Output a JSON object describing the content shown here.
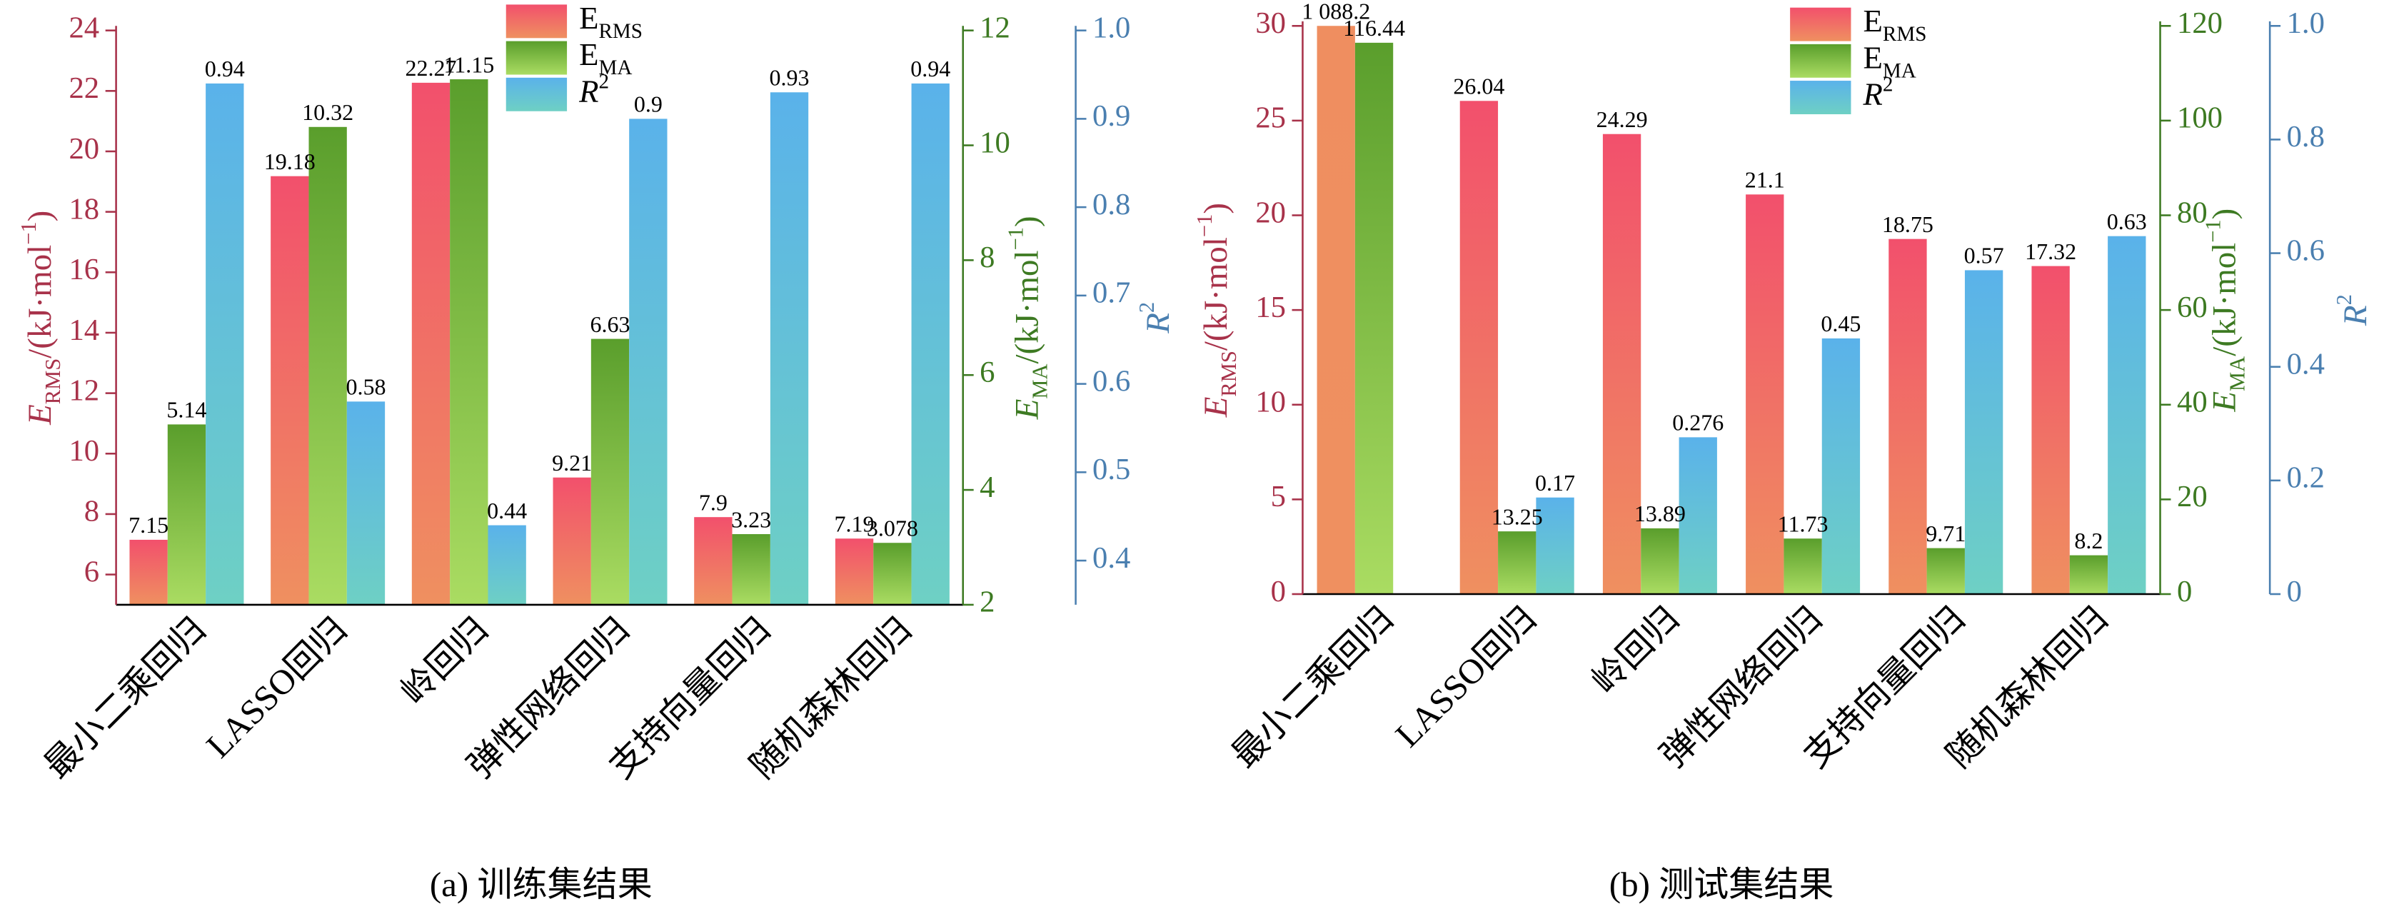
{
  "chart_data": [
    {
      "type": "bar",
      "caption": "(a) 训练集结果",
      "categories": [
        "最小二乘回归",
        "LASSO回归",
        "岭回归",
        "弹性网络回归",
        "支持向量回归",
        "随机森林回归"
      ],
      "ylabel": [
        {
          "text": "E",
          "style": "italic"
        },
        {
          "text": "RMS",
          "style": "sub"
        },
        {
          "text": "/(kJ·mol"
        },
        {
          "text": "−1",
          "style": "sup"
        },
        {
          "text": ")"
        }
      ],
      "y2label": [
        {
          "text": "E",
          "style": "italic"
        },
        {
          "text": "MA",
          "style": "sub"
        },
        {
          "text": "/(kJ·mol"
        },
        {
          "text": "−1",
          "style": "sup"
        },
        {
          "text": ")"
        }
      ],
      "y3label": [
        {
          "text": "R",
          "style": "italic"
        },
        {
          "text": "2",
          "style": "sup"
        }
      ],
      "ylim": [
        5,
        24
      ],
      "yticks": [
        6,
        8,
        10,
        12,
        14,
        16,
        18,
        20,
        22,
        24
      ],
      "y2lim": [
        2,
        12
      ],
      "y2ticks": [
        2,
        4,
        6,
        8,
        10,
        12
      ],
      "y3lim": [
        0.35,
        1
      ],
      "y3ticks": [
        0.4,
        0.5,
        0.6,
        0.7,
        0.8,
        0.9,
        {
          "value": 1,
          "label": "1.0"
        }
      ],
      "axis_colors": {
        "y": "#a8324a",
        "y2": "#3d7a22",
        "y3": "#4a7fb0"
      },
      "legend": "top-center",
      "series": [
        {
          "name": [
            {
              "text": "E"
            },
            {
              "text": "RMS",
              "style": "sub"
            }
          ],
          "color": [
            "#f2506c",
            "#ef9060"
          ],
          "values": [
            7.15,
            19.18,
            22.27,
            9.21,
            7.9,
            7.19
          ]
        },
        {
          "name": [
            {
              "text": "E"
            },
            {
              "text": "MA",
              "style": "sub"
            }
          ],
          "color": [
            "#5a9e2c",
            "#aadc62"
          ],
          "axis": "y2",
          "values": [
            5.14,
            10.32,
            11.15,
            6.63,
            3.23,
            3.078
          ]
        },
        {
          "name": [
            {
              "text": "R",
              "style": "italic"
            },
            {
              "text": "2",
              "style": "sup"
            }
          ],
          "color": [
            "#5ab2ea",
            "#6ed0c4"
          ],
          "axis": "y3",
          "values": [
            0.94,
            0.58,
            0.44,
            0.9,
            0.93,
            0.94
          ]
        }
      ]
    },
    {
      "type": "bar",
      "caption": "(b) 测试集结果",
      "categories": [
        "最小二乘回归",
        "LASSO回归",
        "岭回归",
        "弹性网络回归",
        "支持向量回归",
        "随机森林回归"
      ],
      "ylabel": [
        {
          "text": "E",
          "style": "italic"
        },
        {
          "text": "RMS",
          "style": "sub"
        },
        {
          "text": "/(kJ·mol"
        },
        {
          "text": "−1",
          "style": "sup"
        },
        {
          "text": ")"
        }
      ],
      "y2label": [
        {
          "text": "E",
          "style": "italic"
        },
        {
          "text": "MA",
          "style": "sub"
        },
        {
          "text": "/(kJ·mol"
        },
        {
          "text": "−1",
          "style": "sup"
        },
        {
          "text": ")"
        }
      ],
      "y3label": [
        {
          "text": "R",
          "style": "italic"
        },
        {
          "text": "2",
          "style": "sup"
        }
      ],
      "ylim": [
        0,
        30
      ],
      "yticks": [
        0,
        5,
        10,
        15,
        20,
        25,
        30
      ],
      "y2lim": [
        0,
        120
      ],
      "y2ticks": [
        0,
        20,
        40,
        60,
        80,
        100,
        120
      ],
      "y3lim": [
        0,
        1
      ],
      "y3ticks": [
        0,
        0.2,
        0.4,
        0.6,
        0.8,
        {
          "value": 1,
          "label": "1.0"
        }
      ],
      "axis_colors": {
        "y": "#a8324a",
        "y2": "#3d7a22",
        "y3": "#4a7fb0"
      },
      "legend": "top-center",
      "series": [
        {
          "name": [
            {
              "text": "E"
            },
            {
              "text": "RMS",
              "style": "sub"
            }
          ],
          "color": [
            "#f2506c",
            "#ef9060"
          ],
          "values": [
            1088.2,
            26.04,
            24.29,
            21.1,
            18.75,
            17.32
          ],
          "value_labels": [
            "1 088.2",
            "26.04",
            "24.29",
            "21.1",
            "18.75",
            "17.32"
          ]
        },
        {
          "name": [
            {
              "text": "E"
            },
            {
              "text": "MA",
              "style": "sub"
            }
          ],
          "color": [
            "#5a9e2c",
            "#aadc62"
          ],
          "axis": "y2",
          "values": [
            116.44,
            13.25,
            13.89,
            11.73,
            9.71,
            8.2
          ]
        },
        {
          "name": [
            {
              "text": "R",
              "style": "italic"
            },
            {
              "text": "2",
              "style": "sup"
            }
          ],
          "color": [
            "#5ab2ea",
            "#6ed0c4"
          ],
          "axis": "y3",
          "values": [
            null,
            0.17,
            0.276,
            0.45,
            0.57,
            0.63
          ]
        }
      ]
    }
  ]
}
